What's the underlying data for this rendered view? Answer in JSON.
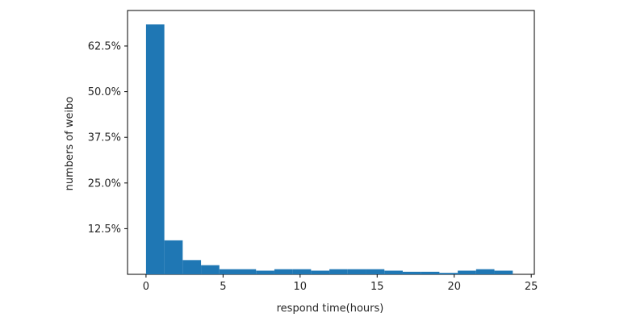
{
  "chart_data": {
    "type": "bar",
    "title": "",
    "xlabel": "respond time(hours)",
    "ylabel": "numbers of weibo",
    "xlim": [
      -1.2,
      25.2
    ],
    "ylim": [
      0,
      0.7222
    ],
    "xticks": [
      0,
      5,
      10,
      15,
      20,
      25
    ],
    "yticks": [
      0.125,
      0.25,
      0.375,
      0.5,
      0.625
    ],
    "ytick_labels": [
      "12.5%",
      "25.0%",
      "37.5%",
      "50.0%",
      "62.5%"
    ],
    "bar_color": "#1f77b4",
    "bins": [
      {
        "x0": 0.0,
        "x1": 1.19,
        "value": 0.684
      },
      {
        "x0": 1.19,
        "x1": 2.38,
        "value": 0.093
      },
      {
        "x0": 2.38,
        "x1": 3.57,
        "value": 0.039
      },
      {
        "x0": 3.57,
        "x1": 4.76,
        "value": 0.025
      },
      {
        "x0": 4.76,
        "x1": 5.95,
        "value": 0.014
      },
      {
        "x0": 5.95,
        "x1": 7.14,
        "value": 0.014
      },
      {
        "x0": 7.14,
        "x1": 8.33,
        "value": 0.01
      },
      {
        "x0": 8.33,
        "x1": 9.52,
        "value": 0.014
      },
      {
        "x0": 9.52,
        "x1": 10.71,
        "value": 0.014
      },
      {
        "x0": 10.71,
        "x1": 11.9,
        "value": 0.01
      },
      {
        "x0": 11.9,
        "x1": 13.09,
        "value": 0.014
      },
      {
        "x0": 13.09,
        "x1": 14.28,
        "value": 0.014
      },
      {
        "x0": 14.28,
        "x1": 15.47,
        "value": 0.014
      },
      {
        "x0": 15.47,
        "x1": 16.66,
        "value": 0.01
      },
      {
        "x0": 16.66,
        "x1": 17.85,
        "value": 0.007
      },
      {
        "x0": 17.85,
        "x1": 19.04,
        "value": 0.007
      },
      {
        "x0": 19.04,
        "x1": 20.23,
        "value": 0.004
      },
      {
        "x0": 20.23,
        "x1": 21.42,
        "value": 0.01
      },
      {
        "x0": 21.42,
        "x1": 22.61,
        "value": 0.014
      },
      {
        "x0": 22.61,
        "x1": 23.8,
        "value": 0.01
      }
    ],
    "grid": false,
    "legend": "none"
  }
}
